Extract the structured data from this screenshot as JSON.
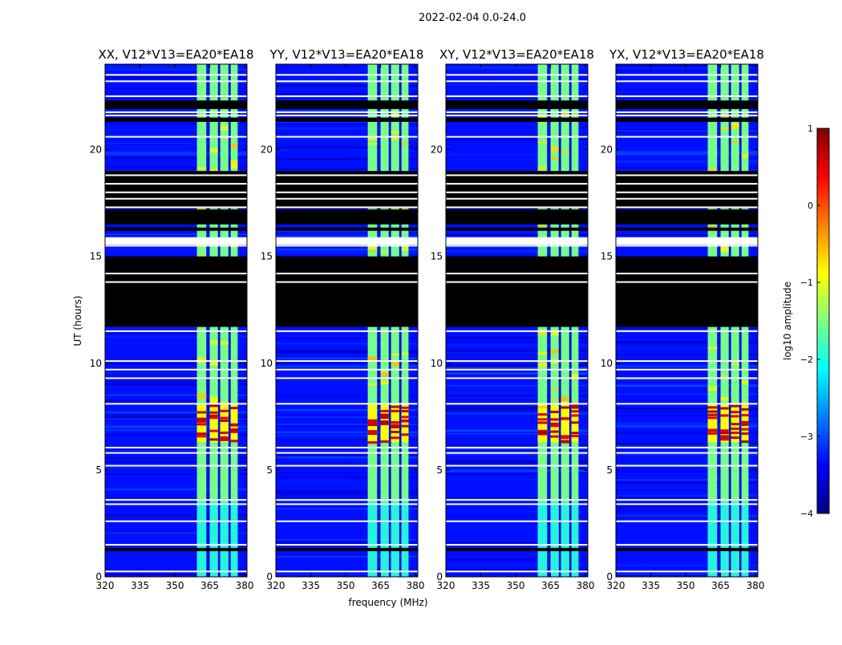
{
  "figure": {
    "suptitle": "2022-02-04 0.0-24.0",
    "xlabel": "frequency (MHz)",
    "ylabel": "UT (hours)"
  },
  "chart_data": {
    "type": "heatmap",
    "x_range": [
      320,
      381
    ],
    "y_range": [
      0,
      24
    ],
    "x_ticks": [
      320,
      335,
      350,
      365,
      380
    ],
    "y_ticks": [
      0,
      5,
      10,
      15,
      20
    ],
    "panels": [
      {
        "title": "XX, V12*V13=EA20*EA18",
        "pol": "XX"
      },
      {
        "title": "YY, V12*V13=EA20*EA18",
        "pol": "YY"
      },
      {
        "title": "XY, V12*V13=EA20*EA18",
        "pol": "XY"
      },
      {
        "title": "YX, V12*V13=EA20*EA18",
        "pol": "YX"
      }
    ],
    "rfi_band_mhz": [
      359.5,
      377
    ],
    "rfi_channels_mhz": [
      [
        359.5,
        363.5
      ],
      [
        365,
        368.5
      ],
      [
        369.5,
        373
      ],
      [
        374,
        377
      ]
    ],
    "flagged_hours": [
      [
        1.2,
        1.35
      ],
      [
        11.7,
        15.0
      ],
      [
        16.2,
        16.35
      ],
      [
        16.5,
        17.2
      ],
      [
        17.25,
        19.0
      ],
      [
        21.3,
        21.5
      ],
      [
        21.9,
        22.3
      ]
    ],
    "strong_rfi_hours": [
      [
        6.3,
        8.1
      ]
    ],
    "colorbar": {
      "label": "log10 amplitude",
      "vmin": -4,
      "vmax": 1,
      "ticks": [
        1,
        0,
        -1,
        -2,
        -3,
        -4
      ],
      "tick_labels": [
        "1",
        "0",
        "−1",
        "−2",
        "−3",
        "−4"
      ],
      "colormap": [
        "#00007f",
        "#0000ff",
        "#007fff",
        "#00ffff",
        "#7fff7f",
        "#ffff00",
        "#ff7f00",
        "#ff0000",
        "#7f0000"
      ]
    }
  }
}
